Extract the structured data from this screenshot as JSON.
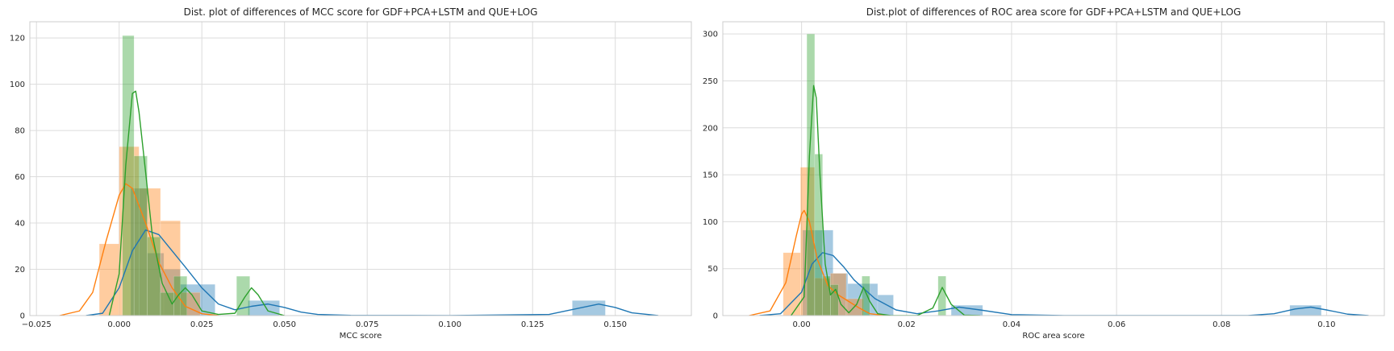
{
  "chart_data": [
    {
      "type": "bar",
      "title": "Dist. plot of differences of MCC score for GDF+PCA+LSTM and QUE+LOG",
      "xlabel": "MCC score",
      "ylabel": "",
      "xlim": [
        -0.027,
        0.173
      ],
      "ylim": [
        0,
        127
      ],
      "xticks": [
        -0.025,
        0.0,
        0.025,
        0.05,
        0.075,
        0.1,
        0.125,
        0.15
      ],
      "xtick_labels": [
        "−0.025",
        "0.000",
        "0.025",
        "0.050",
        "0.075",
        "0.100",
        "0.125",
        "0.150"
      ],
      "yticks": [
        0,
        20,
        40,
        60,
        80,
        100,
        120
      ],
      "ytick_labels": [
        "0",
        "20",
        "40",
        "60",
        "80",
        "100",
        "120"
      ],
      "grid": true,
      "series": [
        {
          "color": "#1f77b4",
          "histogram": [
            {
              "x0": 0.0035,
              "x1": 0.0085,
              "h": 55
            },
            {
              "x0": 0.0085,
              "x1": 0.0135,
              "h": 27
            },
            {
              "x0": 0.0135,
              "x1": 0.0185,
              "h": 20
            },
            {
              "x0": 0.0185,
              "x1": 0.029,
              "h": 13.5
            },
            {
              "x0": 0.039,
              "x1": 0.0485,
              "h": 6.5
            },
            {
              "x0": 0.137,
              "x1": 0.147,
              "h": 6.5
            }
          ],
          "kde": [
            [
              -0.01,
              0
            ],
            [
              -0.005,
              1
            ],
            [
              0.0,
              12
            ],
            [
              0.004,
              28
            ],
            [
              0.008,
              37
            ],
            [
              0.012,
              35
            ],
            [
              0.016,
              28
            ],
            [
              0.02,
              21
            ],
            [
              0.025,
              12
            ],
            [
              0.03,
              5
            ],
            [
              0.035,
              2.5
            ],
            [
              0.04,
              4
            ],
            [
              0.045,
              5
            ],
            [
              0.05,
              3.5
            ],
            [
              0.055,
              1.5
            ],
            [
              0.06,
              0.5
            ],
            [
              0.07,
              0.1
            ],
            [
              0.1,
              0
            ],
            [
              0.13,
              0.5
            ],
            [
              0.14,
              3.5
            ],
            [
              0.145,
              5
            ],
            [
              0.15,
              3.5
            ],
            [
              0.155,
              1.2
            ],
            [
              0.163,
              0
            ]
          ]
        },
        {
          "color": "#ff7f0e",
          "histogram": [
            {
              "x0": -0.006,
              "x1": 0.0,
              "h": 31
            },
            {
              "x0": 0.0,
              "x1": 0.006,
              "h": 73
            },
            {
              "x0": 0.006,
              "x1": 0.0125,
              "h": 55
            },
            {
              "x0": 0.0125,
              "x1": 0.0185,
              "h": 41
            },
            {
              "x0": 0.0185,
              "x1": 0.0245,
              "h": 10
            }
          ],
          "kde": [
            [
              -0.018,
              0
            ],
            [
              -0.012,
              2
            ],
            [
              -0.008,
              10
            ],
            [
              -0.004,
              32
            ],
            [
              0.0,
              52
            ],
            [
              0.002,
              57
            ],
            [
              0.004,
              55
            ],
            [
              0.008,
              40
            ],
            [
              0.012,
              23
            ],
            [
              0.016,
              12
            ],
            [
              0.02,
              4
            ],
            [
              0.025,
              0.8
            ],
            [
              0.03,
              0
            ]
          ]
        },
        {
          "color": "#2ca02c",
          "histogram": [
            {
              "x0": 0.001,
              "x1": 0.0045,
              "h": 121
            },
            {
              "x0": 0.0045,
              "x1": 0.0085,
              "h": 69
            },
            {
              "x0": 0.0085,
              "x1": 0.0125,
              "h": 34
            },
            {
              "x0": 0.0125,
              "x1": 0.0165,
              "h": 10
            },
            {
              "x0": 0.0165,
              "x1": 0.0205,
              "h": 17
            },
            {
              "x0": 0.0355,
              "x1": 0.0395,
              "h": 17
            }
          ],
          "kde": [
            [
              -0.003,
              0
            ],
            [
              0.0,
              18
            ],
            [
              0.002,
              65
            ],
            [
              0.004,
              96
            ],
            [
              0.005,
              97
            ],
            [
              0.006,
              88
            ],
            [
              0.008,
              62
            ],
            [
              0.01,
              35
            ],
            [
              0.013,
              14
            ],
            [
              0.016,
              5
            ],
            [
              0.018,
              9
            ],
            [
              0.02,
              12
            ],
            [
              0.022,
              9
            ],
            [
              0.025,
              2
            ],
            [
              0.03,
              0.5
            ],
            [
              0.035,
              1
            ],
            [
              0.038,
              8
            ],
            [
              0.04,
              12
            ],
            [
              0.042,
              9
            ],
            [
              0.045,
              2
            ],
            [
              0.05,
              0
            ]
          ]
        }
      ]
    },
    {
      "type": "bar",
      "title": "Dist.plot of differences of ROC area score for GDF+PCA+LSTM and QUE+LOG",
      "xlabel": "ROC area score",
      "ylabel": "",
      "xlim": [
        -0.015,
        0.111
      ],
      "ylim": [
        0,
        313
      ],
      "xticks": [
        0.0,
        0.02,
        0.04,
        0.06,
        0.08,
        0.1
      ],
      "xtick_labels": [
        "0.00",
        "0.02",
        "0.04",
        "0.06",
        "0.08",
        "0.10"
      ],
      "yticks": [
        0,
        50,
        100,
        150,
        200,
        250,
        300
      ],
      "ytick_labels": [
        "0",
        "50",
        "100",
        "150",
        "200",
        "250",
        "300"
      ],
      "grid": true,
      "series": [
        {
          "color": "#1f77b4",
          "histogram": [
            {
              "x0": 0.0002,
              "x1": 0.006,
              "h": 91
            },
            {
              "x0": 0.006,
              "x1": 0.0088,
              "h": 45
            },
            {
              "x0": 0.0088,
              "x1": 0.0145,
              "h": 34
            },
            {
              "x0": 0.0145,
              "x1": 0.0175,
              "h": 22
            },
            {
              "x0": 0.0285,
              "x1": 0.0345,
              "h": 11
            },
            {
              "x0": 0.093,
              "x1": 0.099,
              "h": 11
            }
          ],
          "kde": [
            [
              -0.008,
              0
            ],
            [
              -0.004,
              2
            ],
            [
              0.0,
              25
            ],
            [
              0.002,
              55
            ],
            [
              0.004,
              67
            ],
            [
              0.006,
              64
            ],
            [
              0.008,
              52
            ],
            [
              0.01,
              38
            ],
            [
              0.012,
              28
            ],
            [
              0.014,
              18
            ],
            [
              0.018,
              6
            ],
            [
              0.022,
              2
            ],
            [
              0.026,
              5
            ],
            [
              0.03,
              9
            ],
            [
              0.034,
              6
            ],
            [
              0.04,
              1
            ],
            [
              0.05,
              0
            ],
            [
              0.085,
              0
            ],
            [
              0.09,
              2
            ],
            [
              0.094,
              7
            ],
            [
              0.097,
              9
            ],
            [
              0.1,
              6
            ],
            [
              0.104,
              1.5
            ],
            [
              0.108,
              0
            ]
          ]
        },
        {
          "color": "#ff7f0e",
          "histogram": [
            {
              "x0": -0.0035,
              "x1": -0.0002,
              "h": 67
            },
            {
              "x0": -0.0002,
              "x1": 0.0025,
              "h": 158
            },
            {
              "x0": 0.0025,
              "x1": 0.0055,
              "h": 40
            },
            {
              "x0": 0.0055,
              "x1": 0.0085,
              "h": 45
            },
            {
              "x0": 0.0085,
              "x1": 0.0118,
              "h": 18
            }
          ],
          "kde": [
            [
              -0.01,
              0
            ],
            [
              -0.006,
              5
            ],
            [
              -0.003,
              35
            ],
            [
              -0.001,
              85
            ],
            [
              0.0,
              108
            ],
            [
              0.0005,
              112
            ],
            [
              0.0015,
              100
            ],
            [
              0.003,
              60
            ],
            [
              0.005,
              32
            ],
            [
              0.007,
              22
            ],
            [
              0.009,
              15
            ],
            [
              0.011,
              8
            ],
            [
              0.013,
              2
            ],
            [
              0.016,
              0
            ]
          ]
        },
        {
          "color": "#2ca02c",
          "histogram": [
            {
              "x0": 0.001,
              "x1": 0.0025,
              "h": 300
            },
            {
              "x0": 0.0025,
              "x1": 0.004,
              "h": 172
            },
            {
              "x0": 0.004,
              "x1": 0.0055,
              "h": 42
            },
            {
              "x0": 0.0055,
              "x1": 0.007,
              "h": 33
            },
            {
              "x0": 0.0115,
              "x1": 0.013,
              "h": 42
            },
            {
              "x0": 0.026,
              "x1": 0.0275,
              "h": 42
            }
          ],
          "kde": [
            [
              -0.002,
              0
            ],
            [
              0.0005,
              20
            ],
            [
              0.0015,
              170
            ],
            [
              0.0023,
              245
            ],
            [
              0.0028,
              232
            ],
            [
              0.0035,
              150
            ],
            [
              0.0045,
              55
            ],
            [
              0.0055,
              22
            ],
            [
              0.0065,
              28
            ],
            [
              0.0075,
              12
            ],
            [
              0.009,
              3
            ],
            [
              0.0105,
              12
            ],
            [
              0.0118,
              30
            ],
            [
              0.013,
              15
            ],
            [
              0.0145,
              2
            ],
            [
              0.017,
              0
            ],
            [
              0.022,
              0
            ],
            [
              0.025,
              8
            ],
            [
              0.0268,
              30
            ],
            [
              0.0285,
              12
            ],
            [
              0.031,
              0.5
            ],
            [
              0.034,
              0
            ]
          ]
        }
      ]
    }
  ]
}
